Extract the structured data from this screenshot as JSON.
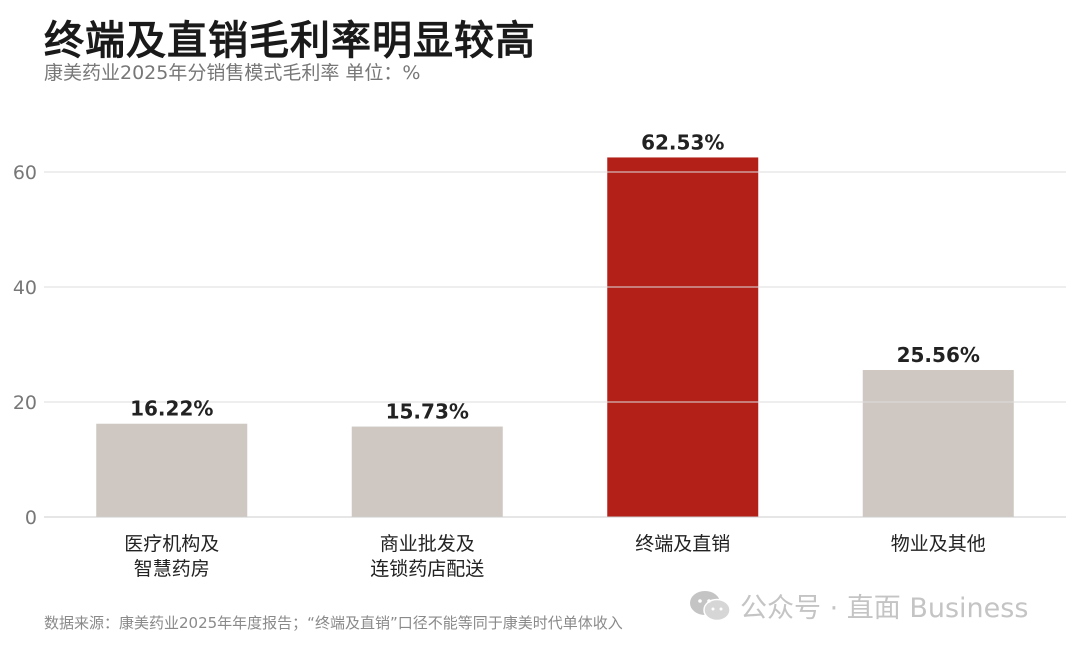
{
  "header": {
    "title": "终端及直销毛利率明显较高",
    "subtitle": "康美药业2025年分销售模式毛利率 单位：%"
  },
  "chart_data": {
    "type": "bar",
    "title": "终端及直销毛利率明显较高",
    "subtitle": "康美药业2025年分销售模式毛利率 单位：%",
    "categories": [
      [
        "医疗机构及",
        "智慧药房"
      ],
      [
        "商业批发及",
        "连锁药店配送"
      ],
      [
        "终端及直销"
      ],
      [
        "物业及其他"
      ]
    ],
    "values": [
      16.22,
      15.73,
      62.53,
      25.56
    ],
    "data_labels": [
      "16.22%",
      "15.73%",
      "62.53%",
      "25.56%"
    ],
    "highlight_index": 2,
    "colors": {
      "bar": "#cfc7c1",
      "highlight": "#b22018",
      "grid": "#dedede"
    },
    "ylim": [
      0,
      70
    ],
    "yticks": [
      0,
      20,
      40,
      60
    ],
    "grid": true
  },
  "footer": {
    "source": "数据来源：康美药业2025年年度报告；“终端及直销”口径不能等同于康美时代单体收入",
    "watermark": "公众号 · 直面 Business"
  }
}
